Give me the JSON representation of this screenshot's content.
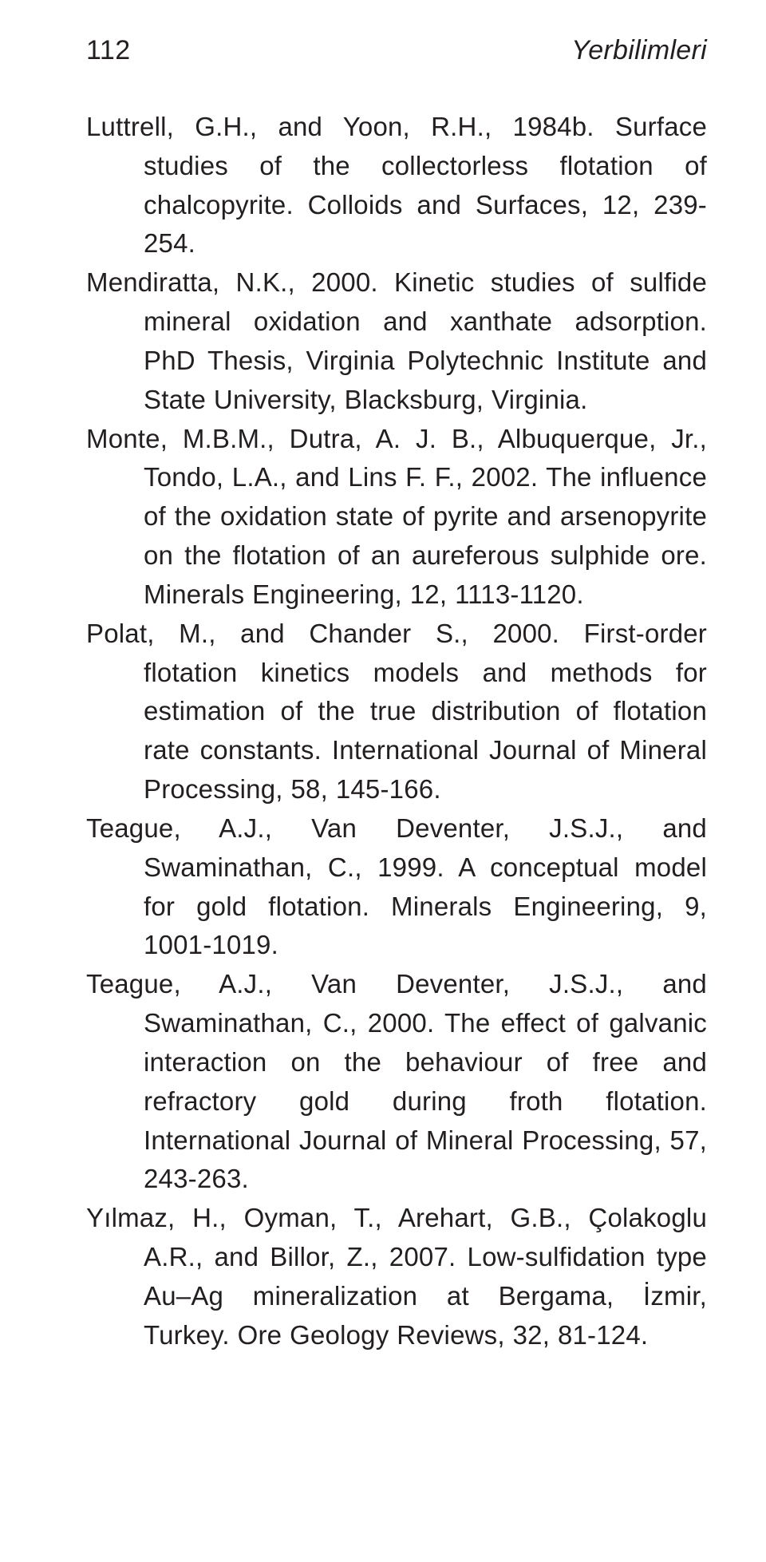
{
  "header": {
    "page_number": "112",
    "journal_title": "Yerbilimleri"
  },
  "references": [
    "Luttrell, G.H., and Yoon, R.H., 1984b. Surface studies of the collectorless flotation of chalcopyrite. Colloids and Surfaces, 12, 239-254.",
    "Mendiratta, N.K., 2000. Kinetic studies of sulfide mineral oxidation and xanthate adsorption. PhD Thesis, Virginia Polytechnic Institute and State University, Blacksburg, Virginia.",
    "Monte, M.B.M., Dutra, A. J. B., Albuquerque, Jr., Tondo, L.A., and Lins F. F., 2002. The influence of the oxidation state of pyrite and arsenopyrite on the flotation of an aureferous sulphide ore. Minerals Engineering, 12, 1113-1120.",
    "Polat, M., and Chander S., 2000. First-order flotation kinetics models and methods for estimation of the true distribution of flotation rate constants. International Journal of Mineral Processing, 58, 145-166.",
    "Teague, A.J., Van Deventer, J.S.J., and Swaminathan, C., 1999. A conceptual model for gold flotation. Minerals Engineering, 9, 1001-1019.",
    "Teague, A.J., Van Deventer, J.S.J., and Swaminathan, C., 2000. The effect of galvanic interaction on the behaviour of free and refractory gold during froth flotation. International Journal of Mineral Processing, 57, 243-263.",
    "Yılmaz, H., Oyman, T., Arehart, G.B., Çolakoglu A.R., and Billor, Z., 2007. Low-sulfidation type Au–Ag mineralization at Bergama, İzmir, Turkey. Ore Geology Reviews, 32, 81-124."
  ]
}
